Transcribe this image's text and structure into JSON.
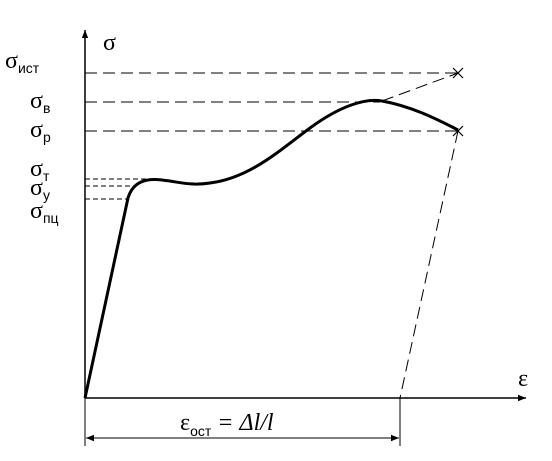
{
  "axes": {
    "y_label": "σ",
    "x_label": "ε"
  },
  "levels": [
    {
      "symbol": "σ",
      "subscript": "ист"
    },
    {
      "symbol": "σ",
      "subscript": "в"
    },
    {
      "symbol": "σ",
      "subscript": "р"
    },
    {
      "symbol": "σ",
      "subscript": "т"
    },
    {
      "symbol": "σ",
      "subscript": "у"
    },
    {
      "symbol": "σ",
      "subscript": "пц"
    }
  ],
  "dimension": {
    "symbol": "ε",
    "subscript": "ост",
    "formula": "= Δl/l"
  }
}
